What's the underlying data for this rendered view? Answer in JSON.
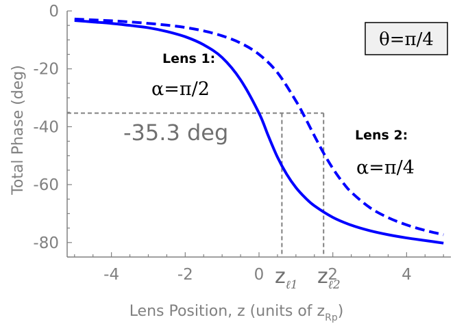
{
  "chart_data": {
    "type": "line",
    "xlabel": "Lens Position, z (units of z",
    "xlabel_sub": "Rp",
    "xlabel_close": ")",
    "ylabel": "Total Phase (deg)",
    "xlim": [
      -5.2,
      5.2
    ],
    "ylim": [
      -85,
      0
    ],
    "x_ticks": [
      -4,
      -2,
      0,
      2,
      4
    ],
    "x_tick_labels": [
      "-4",
      "-2",
      "0",
      "2",
      "4"
    ],
    "y_ticks": [
      0,
      -20,
      -40,
      -60,
      -80
    ],
    "y_tick_labels": [
      "0",
      "-20",
      "-40",
      "-60",
      "-80"
    ],
    "grid": false,
    "series": [
      {
        "name": "Lens 1:",
        "alpha": "α=π/2",
        "style": "solid",
        "color": "#0000ff",
        "x": [
          -5,
          -4.5,
          -4,
          -3.5,
          -3,
          -2.5,
          -2,
          -1.5,
          -1,
          -0.5,
          0,
          0.25,
          0.5,
          0.75,
          1,
          1.25,
          1.5,
          2,
          2.5,
          3,
          3.5,
          4,
          4.5,
          5
        ],
        "y": [
          -3.3,
          -3.8,
          -4.3,
          -5.0,
          -5.8,
          -7.1,
          -8.9,
          -11.7,
          -16.1,
          -23.8,
          -35.3,
          -43.1,
          -50.5,
          -56.4,
          -61.0,
          -64.5,
          -67.3,
          -71.3,
          -74.0,
          -75.9,
          -77.3,
          -78.4,
          -79.3,
          -80.2
        ]
      },
      {
        "name": "Lens 2:",
        "alpha": "α=π/4",
        "style": "dashed",
        "color": "#0000ff",
        "x": [
          -5,
          -4.5,
          -4,
          -3.5,
          -3,
          -2.5,
          -2,
          -1.5,
          -1,
          -0.5,
          0,
          0.5,
          1,
          1.25,
          1.5,
          1.75,
          2,
          2.25,
          2.5,
          3,
          3.5,
          4,
          4.5,
          5
        ],
        "y": [
          -2.8,
          -3.1,
          -3.4,
          -3.8,
          -4.3,
          -4.9,
          -5.7,
          -6.9,
          -8.6,
          -11.1,
          -15.0,
          -21.3,
          -31.1,
          -36.9,
          -43.1,
          -49.1,
          -54.4,
          -58.9,
          -62.6,
          -67.9,
          -71.4,
          -73.9,
          -75.8,
          -77.3
        ]
      }
    ],
    "annotations": {
      "theta": "θ=π/4",
      "phase_value": "-35.3 deg",
      "phase_y": -35.3,
      "z1_x": 0.62,
      "z2_x": 1.75,
      "z1_label": "z",
      "z1_sub": "ℓ1",
      "z2_label": "z",
      "z2_sub": "ℓ2"
    }
  }
}
